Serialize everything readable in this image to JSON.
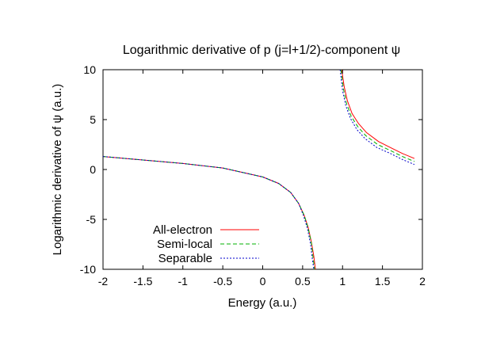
{
  "chart_data": {
    "type": "line",
    "title": "Logarithmic derivative of p (j=l+1/2)-component ψ",
    "xlabel": "Energy (a.u.)",
    "ylabel": "Logarithmic derivative of ψ (a.u.)",
    "xlim": [
      -2,
      2
    ],
    "ylim": [
      -10,
      10
    ],
    "xticks": [
      "-2",
      "-1.5",
      "-1",
      "-0.5",
      "0",
      "0.5",
      "1",
      "1.5",
      "2"
    ],
    "yticks": [
      "-10",
      "-5",
      "0",
      "5",
      "10"
    ],
    "grid": false,
    "legend_position": "bottom-left",
    "series": [
      {
        "name": "All-electron",
        "color": "#ff0000",
        "dash": "solid",
        "branches": [
          {
            "x": [
              -2.0,
              -1.5,
              -1.0,
              -0.5,
              0.0,
              0.2,
              0.35,
              0.45,
              0.52,
              0.57,
              0.61,
              0.64,
              0.66
            ],
            "y": [
              1.3,
              0.95,
              0.6,
              0.15,
              -0.75,
              -1.4,
              -2.3,
              -3.4,
              -4.6,
              -5.8,
              -7.3,
              -8.7,
              -10.0
            ]
          },
          {
            "x": [
              0.99,
              1.02,
              1.06,
              1.12,
              1.2,
              1.3,
              1.45,
              1.6,
              1.75,
              1.9
            ],
            "y": [
              10.0,
              8.3,
              6.9,
              5.6,
              4.6,
              3.7,
              2.8,
              2.2,
              1.6,
              1.1
            ]
          }
        ]
      },
      {
        "name": "Semi-local",
        "color": "#00b000",
        "dash": "dashed",
        "branches": [
          {
            "x": [
              -2.0,
              -1.5,
              -1.0,
              -0.5,
              0.0,
              0.2,
              0.35,
              0.45,
              0.52,
              0.57,
              0.61,
              0.63,
              0.65
            ],
            "y": [
              1.3,
              0.95,
              0.6,
              0.15,
              -0.75,
              -1.4,
              -2.3,
              -3.4,
              -4.6,
              -5.9,
              -7.4,
              -8.8,
              -10.0
            ]
          },
          {
            "x": [
              0.98,
              1.01,
              1.05,
              1.11,
              1.19,
              1.29,
              1.44,
              1.6,
              1.75,
              1.9
            ],
            "y": [
              10.0,
              8.1,
              6.6,
              5.3,
              4.3,
              3.4,
              2.5,
              1.9,
              1.3,
              0.8
            ]
          }
        ]
      },
      {
        "name": "Separable",
        "color": "#0000cc",
        "dash": "dotted",
        "branches": [
          {
            "x": [
              -2.0,
              -1.5,
              -1.0,
              -0.5,
              0.0,
              0.2,
              0.35,
              0.45,
              0.51,
              0.56,
              0.6,
              0.62,
              0.64
            ],
            "y": [
              1.3,
              0.95,
              0.6,
              0.15,
              -0.75,
              -1.4,
              -2.3,
              -3.4,
              -4.6,
              -5.9,
              -7.5,
              -8.9,
              -10.0
            ]
          },
          {
            "x": [
              0.97,
              1.0,
              1.04,
              1.1,
              1.18,
              1.28,
              1.43,
              1.6,
              1.75,
              1.9
            ],
            "y": [
              10.0,
              7.9,
              6.4,
              5.1,
              4.0,
              3.1,
              2.2,
              1.6,
              1.0,
              0.5
            ]
          }
        ]
      }
    ]
  }
}
